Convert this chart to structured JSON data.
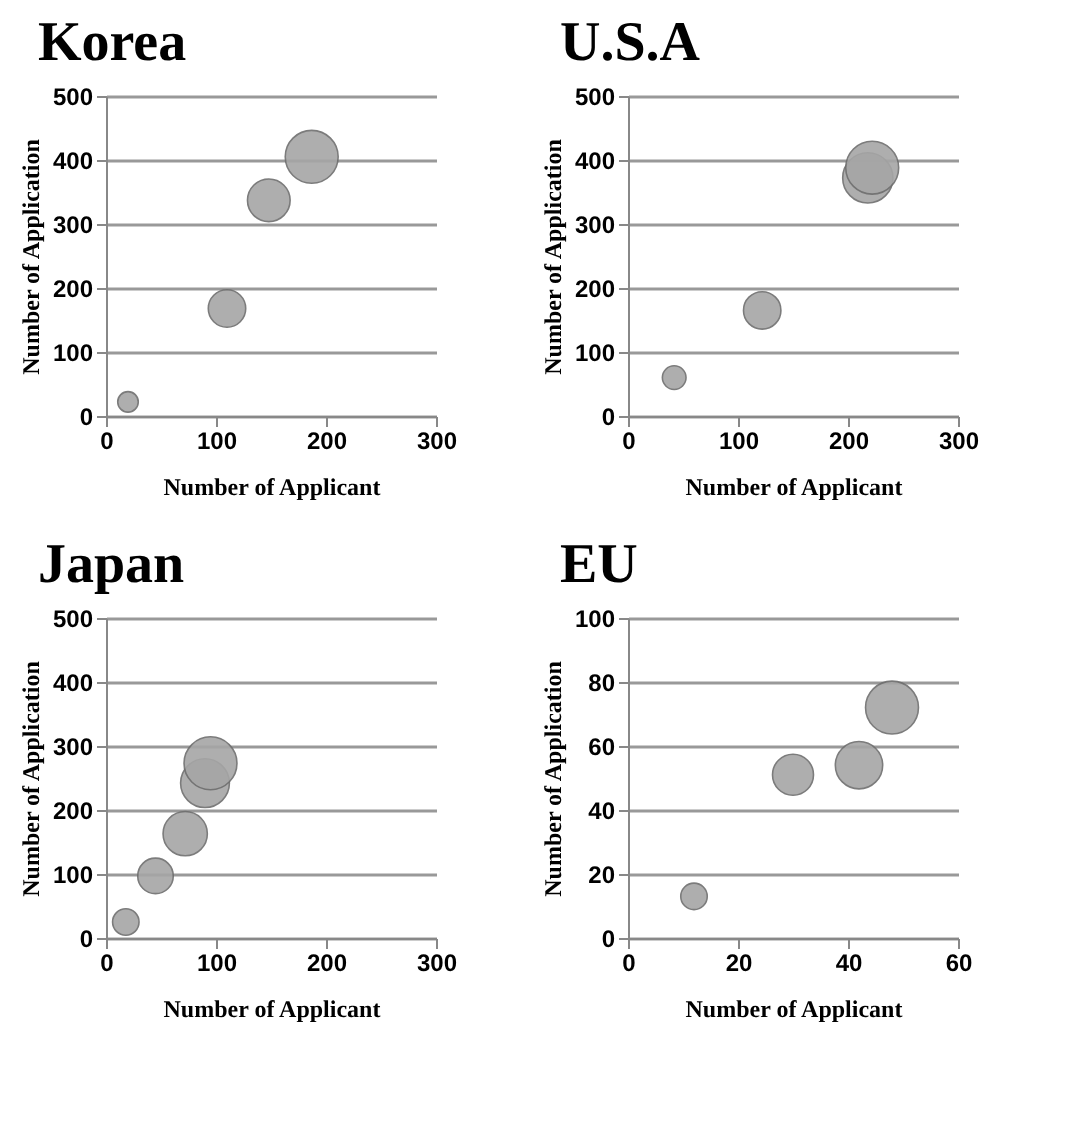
{
  "chart_data": [
    {
      "type": "bubble",
      "title": "Korea",
      "xlabel": "Number of Applicant",
      "ylabel": "Number of Application",
      "x": [
        20,
        110,
        148,
        187
      ],
      "values": [
        22,
        168,
        337,
        405
      ],
      "sizes": [
        0.15,
        0.5,
        0.65,
        1
      ],
      "color": "#a6a6a6",
      "xlim": [
        0,
        300
      ],
      "xticks": [
        0,
        100,
        200,
        300
      ],
      "ylim": [
        0,
        500
      ],
      "yticks": [
        0,
        100,
        200,
        300,
        400,
        500
      ],
      "grid": "y"
    },
    {
      "type": "bubble",
      "title": "U.S.A",
      "xlabel": "Number of Applicant",
      "ylabel": "Number of Application",
      "x": [
        42,
        122,
        218,
        222
      ],
      "values": [
        60,
        165,
        372,
        388
      ],
      "sizes": [
        0.2,
        0.5,
        0.9,
        1
      ],
      "color": "#a6a6a6",
      "xlim": [
        0,
        300
      ],
      "xticks": [
        0,
        100,
        200,
        300
      ],
      "ylim": [
        0,
        500
      ],
      "yticks": [
        0,
        100,
        200,
        300,
        400,
        500
      ],
      "grid": "y"
    },
    {
      "type": "bubble",
      "title": "Japan",
      "xlabel": "Number of Applicant",
      "ylabel": "Number of Application",
      "x": [
        18,
        45,
        72,
        90,
        95
      ],
      "values": [
        25,
        97,
        163,
        242,
        273
      ],
      "sizes": [
        0.25,
        0.45,
        0.7,
        0.85,
        1
      ],
      "color": "#a6a6a6",
      "xlim": [
        0,
        300
      ],
      "xticks": [
        0,
        100,
        200,
        300
      ],
      "ylim": [
        0,
        500
      ],
      "yticks": [
        0,
        100,
        200,
        300,
        400,
        500
      ],
      "grid": "y"
    },
    {
      "type": "bubble",
      "title": "EU",
      "xlabel": "Number of Applicant",
      "ylabel": "Number of Application",
      "x": [
        12,
        30,
        42,
        48
      ],
      "values": [
        13,
        51,
        54,
        72
      ],
      "sizes": [
        0.25,
        0.6,
        0.8,
        1
      ],
      "color": "#a6a6a6",
      "xlim": [
        0,
        60
      ],
      "xticks": [
        0,
        20,
        40,
        60
      ],
      "ylim": [
        0,
        100
      ],
      "yticks": [
        0,
        20,
        40,
        60,
        80,
        100
      ],
      "grid": "y"
    }
  ]
}
